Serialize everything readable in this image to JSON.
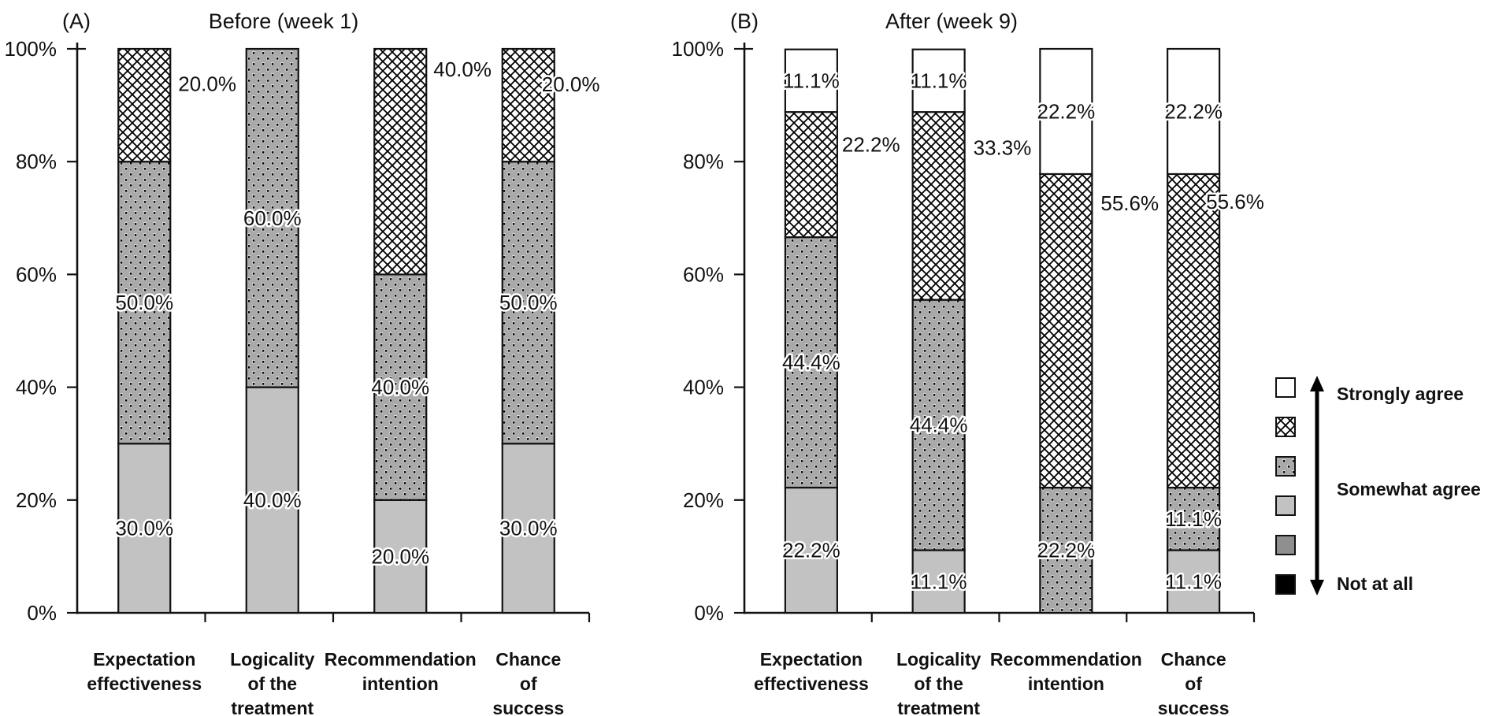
{
  "figure_bg": "#ffffff",
  "colors": {
    "light_gray": "#c2c2c2",
    "dots_bg": "#a9a9a9",
    "dots_speck": "#e9e9e9",
    "dark_gray": "#8f8f8f",
    "white": "#ffffff",
    "black": "#000000",
    "line": "#111111"
  },
  "chart_data": [
    {
      "type": "stacked_bar",
      "panel_label": "(A)",
      "title": "Before (week 1)",
      "y_axis": {
        "min": 0,
        "max": 100,
        "tick_step": 20,
        "tick_labels": [
          "0%",
          "20%",
          "40%",
          "60%",
          "80%",
          "100%"
        ]
      },
      "categories": [
        {
          "name": "Expectation effectiveness",
          "label_lines": [
            "Expectation",
            "effectiveness"
          ],
          "segments": [
            {
              "pattern": "light_gray",
              "value": 30.0,
              "label": "30.0%",
              "label_pos": "in"
            },
            {
              "pattern": "dots",
              "value": 50.0,
              "label": "50.0%",
              "label_pos": "in"
            },
            {
              "pattern": "crosshatch",
              "value": 20.0,
              "label": "20.0%",
              "label_pos": "right",
              "label_dx": 10,
              "label_y_pct": 93.8
            }
          ]
        },
        {
          "name": "Logicality of the treatment",
          "label_lines": [
            "Logicality",
            "of the",
            "treatment"
          ],
          "segments": [
            {
              "pattern": "light_gray",
              "value": 40.0,
              "label": "40.0%",
              "label_pos": "in"
            },
            {
              "pattern": "dots",
              "value": 60.0,
              "label": "60.0%",
              "label_pos": "in"
            }
          ]
        },
        {
          "name": "Recommendation intention",
          "label_lines": [
            "Recommendation",
            "intention"
          ],
          "segments": [
            {
              "pattern": "light_gray",
              "value": 20.0,
              "label": "20.0%",
              "label_pos": "in"
            },
            {
              "pattern": "dots",
              "value": 40.0,
              "label": "40.0%",
              "label_pos": "in"
            },
            {
              "pattern": "crosshatch",
              "value": 40.0,
              "label": "40.0%",
              "label_pos": "right",
              "label_dx": 9,
              "label_y_pct": 96.4
            }
          ]
        },
        {
          "name": "Chance of success",
          "label_lines": [
            "Chance",
            "of",
            "success"
          ],
          "segments": [
            {
              "pattern": "light_gray",
              "value": 30.0,
              "label": "30.0%",
              "label_pos": "in"
            },
            {
              "pattern": "dots",
              "value": 50.0,
              "label": "50.0%",
              "label_pos": "in"
            },
            {
              "pattern": "crosshatch",
              "value": 20.0,
              "label": "20.0%",
              "label_pos": "right",
              "label_dx": -16,
              "label_y_pct": 93.7
            }
          ]
        }
      ]
    },
    {
      "type": "stacked_bar",
      "panel_label": "(B)",
      "title": "After (week 9)",
      "y_axis": {
        "min": 0,
        "max": 100,
        "tick_step": 20,
        "tick_labels": [
          "0%",
          "20%",
          "40%",
          "60%",
          "80%",
          "100%"
        ]
      },
      "categories": [
        {
          "name": "Expectation effectiveness",
          "label_lines": [
            "Expectation",
            "effectiveness"
          ],
          "segments": [
            {
              "pattern": "light_gray",
              "value": 22.2,
              "label": "22.2%",
              "label_pos": "in"
            },
            {
              "pattern": "dots",
              "value": 44.4,
              "label": "44.4%",
              "label_pos": "in"
            },
            {
              "pattern": "crosshatch",
              "value": 22.2,
              "label": "22.2%",
              "label_pos": "right",
              "label_dx": 6,
              "label_y_pct": 83.0
            },
            {
              "pattern": "white",
              "value": 11.1,
              "label": "11.1%",
              "label_pos": "in"
            }
          ]
        },
        {
          "name": "Logicality of the treatment",
          "label_lines": [
            "Logicality",
            "of the",
            "treatment"
          ],
          "segments": [
            {
              "pattern": "light_gray",
              "value": 11.1,
              "label": "11.1%",
              "label_pos": "in"
            },
            {
              "pattern": "dots",
              "value": 44.4,
              "label": "44.4%",
              "label_pos": "in"
            },
            {
              "pattern": "crosshatch",
              "value": 33.3,
              "label": "33.3%",
              "label_pos": "right",
              "label_dx": 11,
              "label_y_pct": 82.5
            },
            {
              "pattern": "white",
              "value": 11.1,
              "label": "11.1%",
              "label_pos": "in"
            }
          ]
        },
        {
          "name": "Recommendation intention",
          "label_lines": [
            "Recommendation",
            "intention"
          ],
          "segments": [
            {
              "pattern": "dots",
              "value": 22.2,
              "label": "22.2%",
              "label_pos": "in"
            },
            {
              "pattern": "crosshatch",
              "value": 55.6,
              "label": "55.6%",
              "label_pos": "right",
              "label_dx": 11,
              "label_y_pct": 72.6
            },
            {
              "pattern": "white",
              "value": 22.2,
              "label": "22.2%",
              "label_pos": "in"
            }
          ]
        },
        {
          "name": "Chance of success",
          "label_lines": [
            "Chance",
            "of",
            "success"
          ],
          "segments": [
            {
              "pattern": "light_gray",
              "value": 11.1,
              "label": "11.1%",
              "label_pos": "in"
            },
            {
              "pattern": "dots",
              "value": 11.1,
              "label": "11.1%",
              "label_pos": "in"
            },
            {
              "pattern": "crosshatch",
              "value": 55.6,
              "label": "55.6%",
              "label_pos": "right",
              "label_dx": -17,
              "label_y_pct": 72.9
            },
            {
              "pattern": "white",
              "value": 22.2,
              "label": "22.2%",
              "label_pos": "in"
            }
          ]
        }
      ]
    }
  ],
  "legend": {
    "items": [
      {
        "pattern": "white",
        "label": "Strongly agree"
      },
      {
        "pattern": "crosshatch",
        "label": ""
      },
      {
        "pattern": "dots",
        "label": ""
      },
      {
        "pattern": "light_gray",
        "label": "Somewhat agree"
      },
      {
        "pattern": "dark_gray",
        "label": ""
      },
      {
        "pattern": "black",
        "label": "Not at all"
      }
    ],
    "arrow_icon": "double-headed-vertical-arrow"
  }
}
